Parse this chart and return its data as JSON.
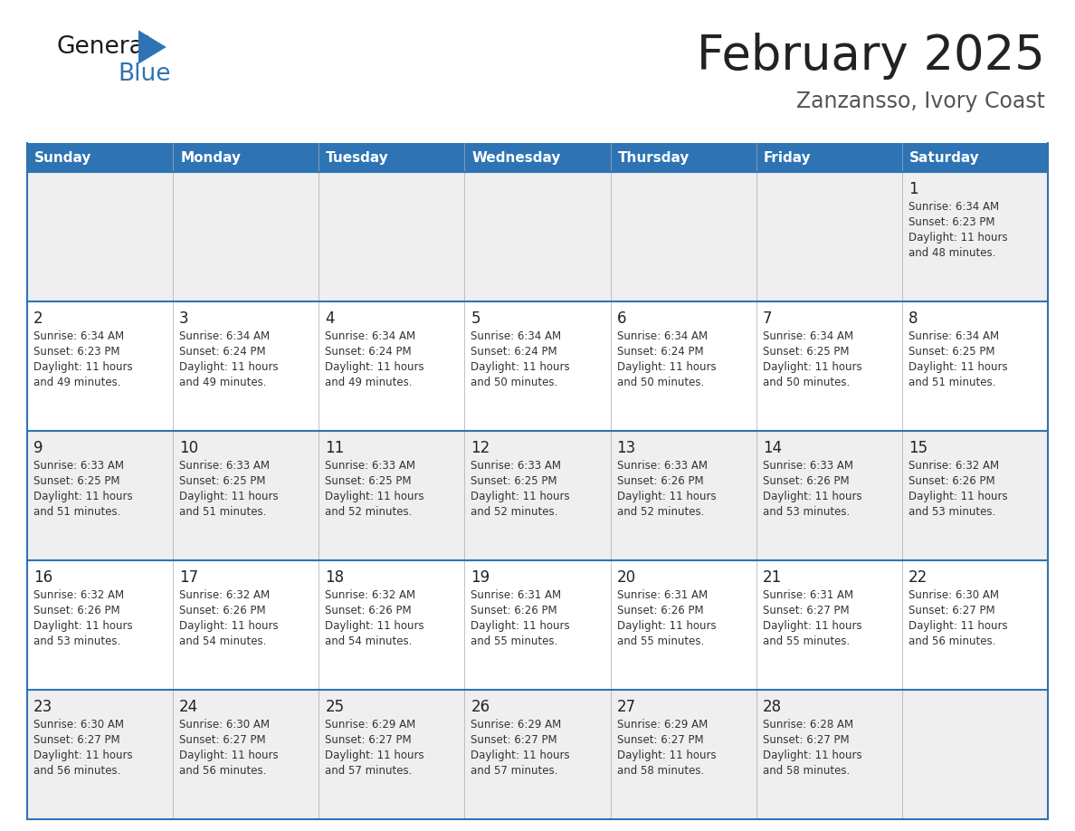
{
  "title": "February 2025",
  "subtitle": "Zanzansso, Ivory Coast",
  "days_of_week": [
    "Sunday",
    "Monday",
    "Tuesday",
    "Wednesday",
    "Thursday",
    "Friday",
    "Saturday"
  ],
  "header_bg": "#2E74B5",
  "header_text_color": "#FFFFFF",
  "cell_bg_light": "#EFEFEF",
  "cell_bg_white": "#FFFFFF",
  "border_color": "#2E74B5",
  "text_color": "#333333",
  "day_num_color": "#222222",
  "title_color": "#222222",
  "subtitle_color": "#555555",
  "logo_general_color": "#1A1A1A",
  "logo_blue_color": "#2E74B5",
  "calendar_data": [
    [
      null,
      null,
      null,
      null,
      null,
      null,
      {
        "day": 1,
        "sunrise": "6:34 AM",
        "sunset": "6:23 PM",
        "daylight_hours": 11,
        "daylight_minutes": 48
      }
    ],
    [
      {
        "day": 2,
        "sunrise": "6:34 AM",
        "sunset": "6:23 PM",
        "daylight_hours": 11,
        "daylight_minutes": 49
      },
      {
        "day": 3,
        "sunrise": "6:34 AM",
        "sunset": "6:24 PM",
        "daylight_hours": 11,
        "daylight_minutes": 49
      },
      {
        "day": 4,
        "sunrise": "6:34 AM",
        "sunset": "6:24 PM",
        "daylight_hours": 11,
        "daylight_minutes": 49
      },
      {
        "day": 5,
        "sunrise": "6:34 AM",
        "sunset": "6:24 PM",
        "daylight_hours": 11,
        "daylight_minutes": 50
      },
      {
        "day": 6,
        "sunrise": "6:34 AM",
        "sunset": "6:24 PM",
        "daylight_hours": 11,
        "daylight_minutes": 50
      },
      {
        "day": 7,
        "sunrise": "6:34 AM",
        "sunset": "6:25 PM",
        "daylight_hours": 11,
        "daylight_minutes": 50
      },
      {
        "day": 8,
        "sunrise": "6:34 AM",
        "sunset": "6:25 PM",
        "daylight_hours": 11,
        "daylight_minutes": 51
      }
    ],
    [
      {
        "day": 9,
        "sunrise": "6:33 AM",
        "sunset": "6:25 PM",
        "daylight_hours": 11,
        "daylight_minutes": 51
      },
      {
        "day": 10,
        "sunrise": "6:33 AM",
        "sunset": "6:25 PM",
        "daylight_hours": 11,
        "daylight_minutes": 51
      },
      {
        "day": 11,
        "sunrise": "6:33 AM",
        "sunset": "6:25 PM",
        "daylight_hours": 11,
        "daylight_minutes": 52
      },
      {
        "day": 12,
        "sunrise": "6:33 AM",
        "sunset": "6:25 PM",
        "daylight_hours": 11,
        "daylight_minutes": 52
      },
      {
        "day": 13,
        "sunrise": "6:33 AM",
        "sunset": "6:26 PM",
        "daylight_hours": 11,
        "daylight_minutes": 52
      },
      {
        "day": 14,
        "sunrise": "6:33 AM",
        "sunset": "6:26 PM",
        "daylight_hours": 11,
        "daylight_minutes": 53
      },
      {
        "day": 15,
        "sunrise": "6:32 AM",
        "sunset": "6:26 PM",
        "daylight_hours": 11,
        "daylight_minutes": 53
      }
    ],
    [
      {
        "day": 16,
        "sunrise": "6:32 AM",
        "sunset": "6:26 PM",
        "daylight_hours": 11,
        "daylight_minutes": 53
      },
      {
        "day": 17,
        "sunrise": "6:32 AM",
        "sunset": "6:26 PM",
        "daylight_hours": 11,
        "daylight_minutes": 54
      },
      {
        "day": 18,
        "sunrise": "6:32 AM",
        "sunset": "6:26 PM",
        "daylight_hours": 11,
        "daylight_minutes": 54
      },
      {
        "day": 19,
        "sunrise": "6:31 AM",
        "sunset": "6:26 PM",
        "daylight_hours": 11,
        "daylight_minutes": 55
      },
      {
        "day": 20,
        "sunrise": "6:31 AM",
        "sunset": "6:26 PM",
        "daylight_hours": 11,
        "daylight_minutes": 55
      },
      {
        "day": 21,
        "sunrise": "6:31 AM",
        "sunset": "6:27 PM",
        "daylight_hours": 11,
        "daylight_minutes": 55
      },
      {
        "day": 22,
        "sunrise": "6:30 AM",
        "sunset": "6:27 PM",
        "daylight_hours": 11,
        "daylight_minutes": 56
      }
    ],
    [
      {
        "day": 23,
        "sunrise": "6:30 AM",
        "sunset": "6:27 PM",
        "daylight_hours": 11,
        "daylight_minutes": 56
      },
      {
        "day": 24,
        "sunrise": "6:30 AM",
        "sunset": "6:27 PM",
        "daylight_hours": 11,
        "daylight_minutes": 56
      },
      {
        "day": 25,
        "sunrise": "6:29 AM",
        "sunset": "6:27 PM",
        "daylight_hours": 11,
        "daylight_minutes": 57
      },
      {
        "day": 26,
        "sunrise": "6:29 AM",
        "sunset": "6:27 PM",
        "daylight_hours": 11,
        "daylight_minutes": 57
      },
      {
        "day": 27,
        "sunrise": "6:29 AM",
        "sunset": "6:27 PM",
        "daylight_hours": 11,
        "daylight_minutes": 58
      },
      {
        "day": 28,
        "sunrise": "6:28 AM",
        "sunset": "6:27 PM",
        "daylight_hours": 11,
        "daylight_minutes": 58
      },
      null
    ]
  ]
}
